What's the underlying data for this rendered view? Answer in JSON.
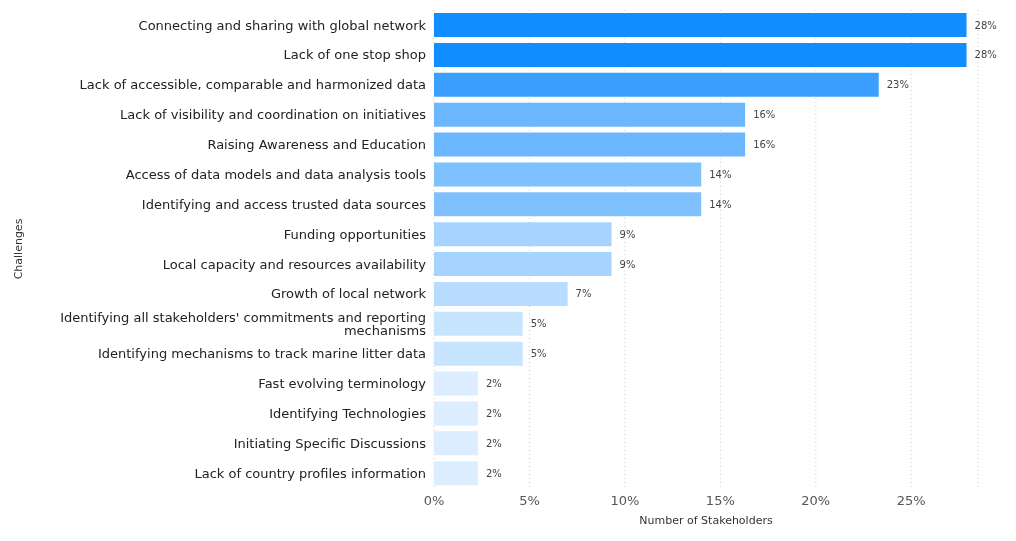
{
  "chart_data": {
    "type": "bar",
    "orientation": "horizontal",
    "xlabel": "Number of Stakeholders",
    "ylabel": "Challenges",
    "categories": [
      "Connecting and sharing with global network",
      "Lack of one stop shop",
      "Lack of accessible, comparable and harmonized data",
      "Lack of visibility and coordination on initiatives",
      "Raising Awareness and Education",
      "Access of data models and data analysis tools",
      "Identifying and access trusted data sources",
      "Funding opportunities",
      "Local capacity and resources availability",
      "Growth of local network",
      "Identifying all stakeholders' commitments and reporting mechanisms",
      "Identifying mechanisms to track marine litter data",
      "Fast evolving terminology",
      "Identifying Technologies",
      "Initiating Specific Discussions",
      "Lack of country profiles information"
    ],
    "values": [
      27.9,
      27.9,
      23.3,
      16.3,
      16.3,
      14,
      14,
      9.3,
      9.3,
      7,
      4.65,
      4.65,
      2.3,
      2.3,
      2.3,
      2.3
    ],
    "value_labels": [
      "28%",
      "28%",
      "23%",
      "16%",
      "16%",
      "14%",
      "14%",
      "9%",
      "9%",
      "7%",
      "5%",
      "5%",
      "2%",
      "2%",
      "2%",
      "2%"
    ],
    "colors": [
      "#118dff",
      "#118dff",
      "#3a9fff",
      "#6bb7ff",
      "#6bb7ff",
      "#7fc1ff",
      "#7fc1ff",
      "#a7d3ff",
      "#a7d3ff",
      "#b8dcff",
      "#c8e5ff",
      "#c8e5ff",
      "#dcedff",
      "#dcedff",
      "#dcedff",
      "#dcedff"
    ],
    "xlim": [
      0,
      28.5
    ],
    "xticks": [
      {
        "value": 0,
        "label": "0%"
      },
      {
        "value": 5,
        "label": "5%"
      },
      {
        "value": 10,
        "label": "10%"
      },
      {
        "value": 15,
        "label": "15%"
      },
      {
        "value": 20,
        "label": "20%"
      },
      {
        "value": 25,
        "label": "25%"
      }
    ],
    "grid": "x",
    "legend": false
  }
}
